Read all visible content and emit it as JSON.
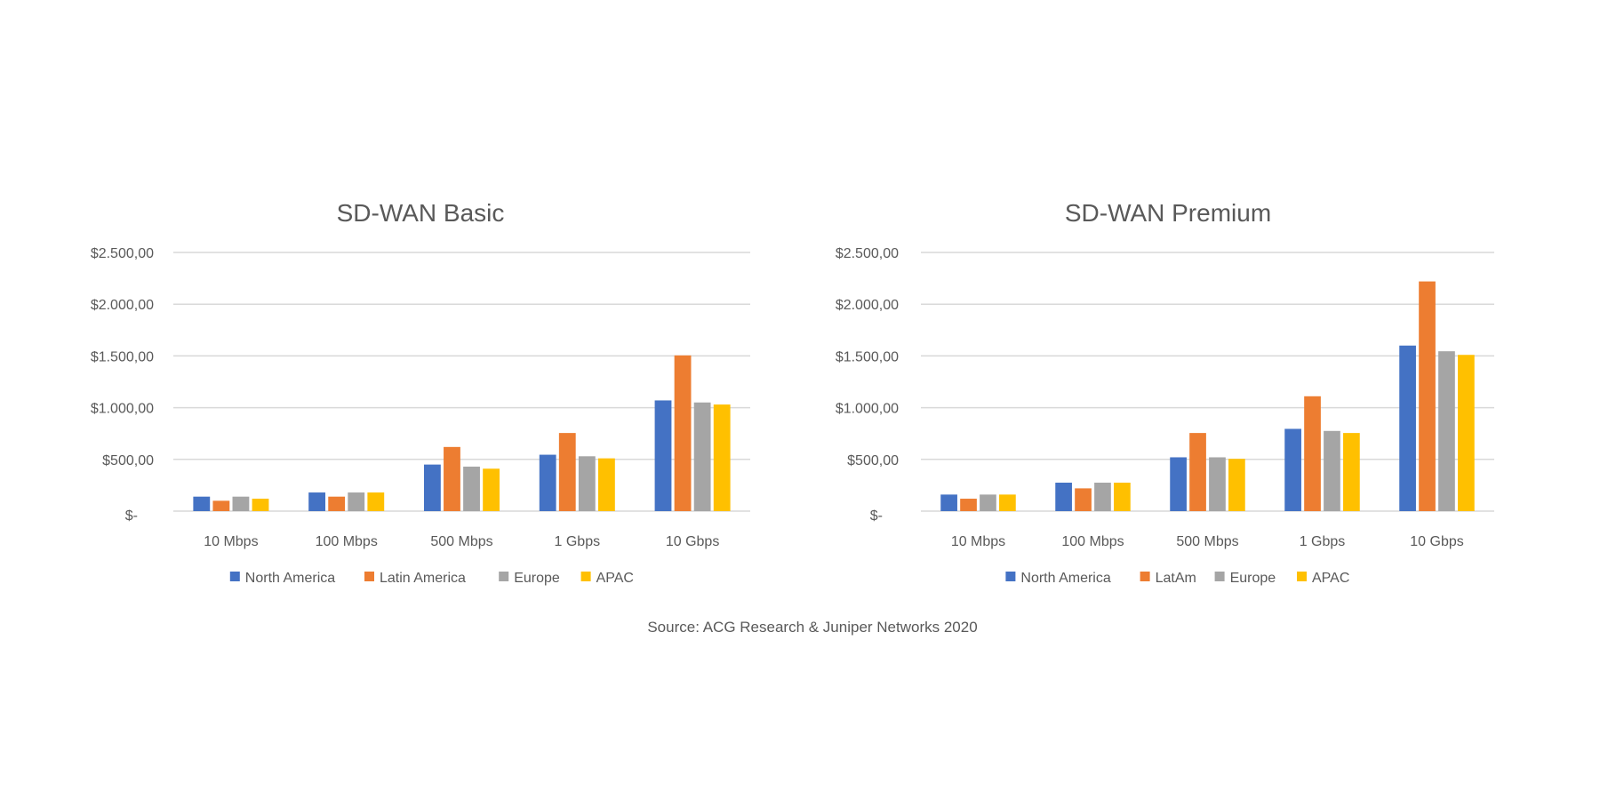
{
  "source": "Source: ACG Research &  Juniper Networks 2020",
  "chart_data": [
    {
      "type": "bar",
      "title": "SD-WAN Basic",
      "xlabel": "",
      "ylabel": "",
      "ylim": [
        0,
        2500
      ],
      "yticks": [
        0,
        500,
        1000,
        1500,
        2000,
        2500
      ],
      "ytick_labels": [
        "$-",
        "$500,00",
        "$1.000,00",
        "$1.500,00",
        "$2.000,00",
        "$2.500,00"
      ],
      "grid": true,
      "legend_position": "bottom",
      "categories": [
        "10 Mbps",
        "100 Mbps",
        "500 Mbps",
        "1 Gbps",
        "10 Gbps"
      ],
      "series": [
        {
          "name": "North America",
          "color": "#4472C4",
          "values": [
            140,
            180,
            450,
            545,
            1070
          ]
        },
        {
          "name": "Latin America",
          "color": "#ED7D31",
          "values": [
            100,
            140,
            620,
            755,
            1505
          ]
        },
        {
          "name": "Europe",
          "color": "#A5A5A5",
          "values": [
            140,
            180,
            430,
            530,
            1050
          ]
        },
        {
          "name": "APAC",
          "color": "#FFC000",
          "values": [
            120,
            180,
            410,
            510,
            1030
          ]
        }
      ]
    },
    {
      "type": "bar",
      "title": "SD-WAN Premium",
      "xlabel": "",
      "ylabel": "",
      "ylim": [
        0,
        2500
      ],
      "yticks": [
        0,
        500,
        1000,
        1500,
        2000,
        2500
      ],
      "ytick_labels": [
        "$-",
        "$500,00",
        "$1.000,00",
        "$1.500,00",
        "$2.000,00",
        "$2.500,00"
      ],
      "grid": true,
      "legend_position": "bottom",
      "categories": [
        "10 Mbps",
        "100 Mbps",
        "500 Mbps",
        "1 Gbps",
        "10 Gbps"
      ],
      "series": [
        {
          "name": "North America",
          "color": "#4472C4",
          "values": [
            160,
            275,
            520,
            795,
            1600
          ]
        },
        {
          "name": "LatAm",
          "color": "#ED7D31",
          "values": [
            120,
            220,
            755,
            1110,
            2220
          ]
        },
        {
          "name": "Europe",
          "color": "#A5A5A5",
          "values": [
            160,
            275,
            520,
            775,
            1545
          ]
        },
        {
          "name": "APAC",
          "color": "#FFC000",
          "values": [
            160,
            275,
            505,
            755,
            1510
          ]
        }
      ]
    }
  ]
}
